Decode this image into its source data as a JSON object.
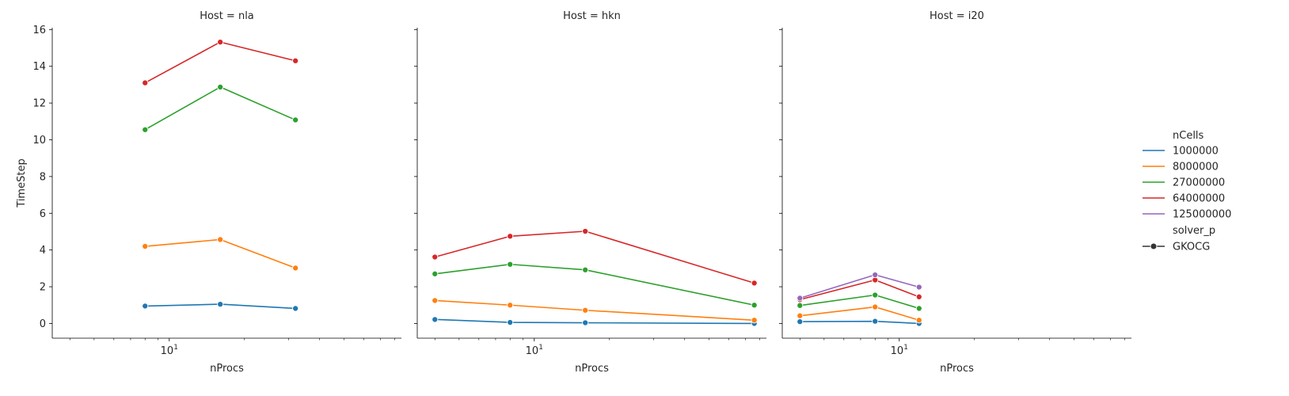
{
  "chart_data": {
    "type": "line",
    "facet_variable": "Host",
    "xlabel": "nProcs",
    "ylabel": "TimeStep",
    "xscale": "log",
    "xlim": [
      3.4,
      85
    ],
    "ylim": [
      -0.8,
      16.1
    ],
    "yticks": [
      0,
      2,
      4,
      6,
      8,
      10,
      12,
      14,
      16
    ],
    "xtick_major": 10,
    "xtick_major_label": "10",
    "xtick_minor": [
      4,
      5,
      6,
      7,
      8,
      9,
      20,
      30,
      40,
      50,
      60,
      70,
      80
    ],
    "grid": false,
    "legend": {
      "placement": "right",
      "hue_title": "nCells",
      "style_title": "solver_p",
      "style_entries": [
        "GKOCG"
      ]
    },
    "colors": {
      "1000000": "#1f77b4",
      "8000000": "#ff7f0e",
      "27000000": "#2ca02c",
      "64000000": "#d62728",
      "125000000": "#9467bd"
    },
    "series_order": [
      "1000000",
      "8000000",
      "27000000",
      "64000000",
      "125000000"
    ],
    "panels": [
      {
        "title": "Host = nla",
        "series": [
          {
            "name": "1000000",
            "x": [
              8,
              16,
              32
            ],
            "y": [
              0.95,
              1.05,
              0.82
            ]
          },
          {
            "name": "8000000",
            "x": [
              8,
              16,
              32
            ],
            "y": [
              4.2,
              4.57,
              3.02
            ]
          },
          {
            "name": "27000000",
            "x": [
              8,
              16,
              32
            ],
            "y": [
              10.55,
              12.87,
              11.08
            ]
          },
          {
            "name": "64000000",
            "x": [
              8,
              16,
              32
            ],
            "y": [
              13.1,
              15.32,
              14.3
            ]
          }
        ]
      },
      {
        "title": "Host = hkn",
        "series": [
          {
            "name": "1000000",
            "x": [
              4,
              8,
              16,
              76
            ],
            "y": [
              0.22,
              0.06,
              0.04,
              0.0
            ]
          },
          {
            "name": "8000000",
            "x": [
              4,
              8,
              16,
              76
            ],
            "y": [
              1.25,
              1.0,
              0.72,
              0.18
            ]
          },
          {
            "name": "27000000",
            "x": [
              4,
              8,
              16,
              76
            ],
            "y": [
              2.7,
              3.22,
              2.92,
              1.0
            ]
          },
          {
            "name": "64000000",
            "x": [
              4,
              8,
              16,
              76
            ],
            "y": [
              3.62,
              4.75,
              5.02,
              2.2
            ]
          }
        ]
      },
      {
        "title": "Host = i20",
        "series": [
          {
            "name": "1000000",
            "x": [
              4,
              8,
              12
            ],
            "y": [
              0.1,
              0.12,
              0.0
            ]
          },
          {
            "name": "8000000",
            "x": [
              4,
              8,
              12
            ],
            "y": [
              0.42,
              0.9,
              0.18
            ]
          },
          {
            "name": "27000000",
            "x": [
              4,
              8,
              12
            ],
            "y": [
              0.98,
              1.55,
              0.82
            ]
          },
          {
            "name": "64000000",
            "x": [
              4,
              8,
              12
            ],
            "y": [
              1.3,
              2.37,
              1.45
            ]
          },
          {
            "name": "125000000",
            "x": [
              4,
              8,
              12
            ],
            "y": [
              1.38,
              2.65,
              1.98
            ]
          }
        ]
      }
    ]
  }
}
